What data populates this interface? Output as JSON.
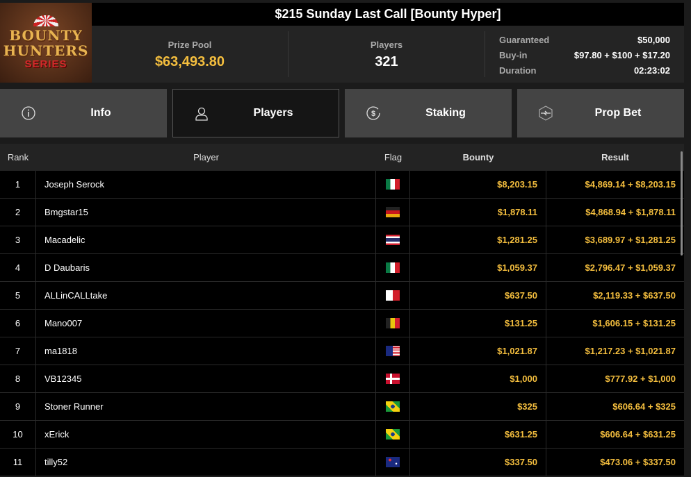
{
  "logo": {
    "line1": "BOUNTY",
    "line2": "HUNTERS",
    "line3": "SERIES"
  },
  "title": "$215 Sunday Last Call [Bounty Hyper]",
  "stats": {
    "prize_pool_label": "Prize Pool",
    "prize_pool": "$63,493.80",
    "players_label": "Players",
    "players": "321",
    "guaranteed_label": "Guaranteed",
    "guaranteed": "$50,000",
    "buyin_label": "Buy-in",
    "buyin": "$97.80 + $100 + $17.20",
    "duration_label": "Duration",
    "duration": "02:23:02"
  },
  "tabs": [
    {
      "label": "Info",
      "icon": "info-icon"
    },
    {
      "label": "Players",
      "icon": "user-icon",
      "active": true
    },
    {
      "label": "Staking",
      "icon": "dollar-coin-icon"
    },
    {
      "label": "Prop Bet",
      "icon": "hexagon-bolt-icon"
    }
  ],
  "table": {
    "headers": [
      "Rank",
      "Player",
      "Flag",
      "Bounty",
      "Result"
    ],
    "rows": [
      {
        "rank": "1",
        "player": "Joseph Serock",
        "flag": "mexico",
        "bounty": "$8,203.15",
        "result": "$4,869.14 + $8,203.15"
      },
      {
        "rank": "2",
        "player": "Bmgstar15",
        "flag": "germany",
        "bounty": "$1,878.11",
        "result": "$4,868.94 + $1,878.11"
      },
      {
        "rank": "3",
        "player": "Macadelic",
        "flag": "thailand",
        "bounty": "$1,281.25",
        "result": "$3,689.97 + $1,281.25"
      },
      {
        "rank": "4",
        "player": "D Daubaris",
        "flag": "mexico",
        "bounty": "$1,059.37",
        "result": "$2,796.47 + $1,059.37"
      },
      {
        "rank": "5",
        "player": "ALLinCALLtake",
        "flag": "malta",
        "bounty": "$637.50",
        "result": "$2,119.33 + $637.50"
      },
      {
        "rank": "6",
        "player": "Mano007",
        "flag": "belgium",
        "bounty": "$131.25",
        "result": "$1,606.15 + $131.25"
      },
      {
        "rank": "7",
        "player": "ma1818",
        "flag": "malaysia",
        "bounty": "$1,021.87",
        "result": "$1,217.23 + $1,021.87"
      },
      {
        "rank": "8",
        "player": "VB12345",
        "flag": "denmark",
        "bounty": "$1,000",
        "result": "$777.92 + $1,000"
      },
      {
        "rank": "9",
        "player": "Stoner Runner",
        "flag": "brazil",
        "bounty": "$325",
        "result": "$606.64 + $325"
      },
      {
        "rank": "10",
        "player": "xErick",
        "flag": "brazil",
        "bounty": "$631.25",
        "result": "$606.64 + $631.25"
      },
      {
        "rank": "11",
        "player": "tilly52",
        "flag": "australia",
        "bounty": "$337.50",
        "result": "$473.06 + $337.50"
      }
    ]
  },
  "colors": {
    "accent_gold": "#f4be3e",
    "tab_bg": "#444444",
    "active_tab_bg": "#151515"
  }
}
